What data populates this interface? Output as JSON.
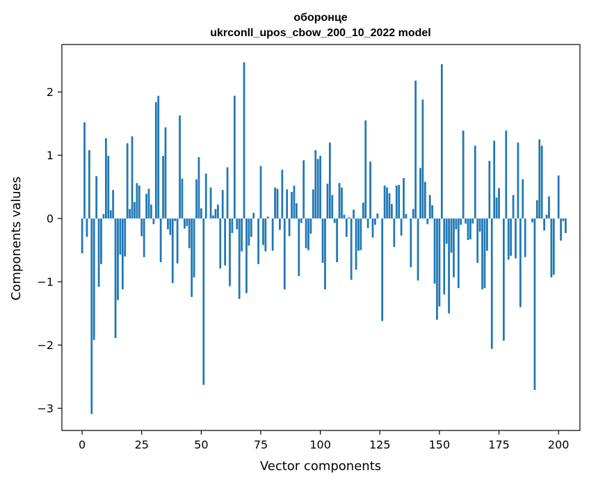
{
  "chart_data": {
    "type": "bar",
    "title_line1": "оборонце",
    "title_line2": "ukrconll_upos_cbow_200_10_2022 model",
    "xlabel": "Vector components",
    "ylabel": "Components values",
    "xlim": [
      -8.5,
      209
    ],
    "ylim": [
      -3.35,
      2.75
    ],
    "xticks": [
      0,
      25,
      50,
      75,
      100,
      125,
      150,
      175,
      200
    ],
    "xtick_labels": [
      "0",
      "25",
      "50",
      "75",
      "100",
      "125",
      "150",
      "175",
      "200"
    ],
    "yticks": [
      -3,
      -2,
      -1,
      0,
      1,
      2
    ],
    "ytick_labels": [
      "−3",
      "−2",
      "−1",
      "0",
      "1",
      "2"
    ],
    "bar_color": "#1f77b4",
    "values": [
      -0.55,
      1.52,
      -0.29,
      1.08,
      -3.09,
      -1.92,
      0.67,
      -1.08,
      -0.72,
      0.07,
      1.27,
      0.99,
      0.13,
      0.45,
      -1.89,
      -1.29,
      -0.57,
      -1.12,
      -0.6,
      1.19,
      0.15,
      1.3,
      0.26,
      0.56,
      0.52,
      -0.28,
      -0.61,
      0.39,
      0.47,
      0.22,
      -0.09,
      1.84,
      1.94,
      -0.69,
      0.99,
      1.44,
      -0.17,
      -0.26,
      -1.02,
      -0.04,
      -0.71,
      1.63,
      0.63,
      -0.16,
      -0.12,
      -0.47,
      -1.24,
      -0.93,
      0.62,
      0.97,
      0.16,
      -2.63,
      0.71,
      0.0,
      0.49,
      0.05,
      0.15,
      0.22,
      -0.79,
      0.45,
      -0.74,
      0.81,
      -1.07,
      -0.23,
      1.94,
      -0.17,
      -1.27,
      -0.52,
      2.47,
      -1.18,
      -0.43,
      -0.29,
      0.09,
      0.0,
      -0.72,
      0.83,
      -0.42,
      -0.52,
      0.03,
      0.0,
      -0.51,
      0.49,
      0.47,
      -0.18,
      0.77,
      -1.12,
      0.46,
      -0.28,
      0.42,
      0.52,
      0.24,
      -0.91,
      -0.07,
      0.92,
      -0.47,
      -0.5,
      -0.24,
      0.46,
      1.08,
      0.94,
      0.99,
      -0.7,
      -1.12,
      0.55,
      1.2,
      0.37,
      -0.07,
      -0.69,
      0.56,
      0.49,
      0.06,
      -0.29,
      0.02,
      -0.97,
      0.14,
      -0.81,
      -0.51,
      -0.5,
      0.25,
      1.55,
      -0.15,
      0.9,
      -0.3,
      -0.1,
      0.08,
      0.0,
      -1.62,
      0.52,
      0.49,
      0.4,
      0.23,
      -0.45,
      0.52,
      0.53,
      -0.27,
      0.64,
      0.07,
      0.0,
      -0.77,
      0.15,
      2.18,
      -0.98,
      0.8,
      1.88,
      0.58,
      -0.09,
      0.37,
      0.21,
      -1.03,
      -1.6,
      -1.39,
      2.44,
      -1.2,
      -0.4,
      -1.5,
      -0.54,
      -0.93,
      -0.17,
      -1.1,
      -0.1,
      1.39,
      -0.08,
      -0.34,
      -0.33,
      -0.08,
      1.15,
      -0.7,
      -0.21,
      -1.12,
      -1.1,
      -0.51,
      0.91,
      -2.06,
      1.23,
      0.33,
      0.48,
      0.0,
      -1.93,
      1.39,
      -0.65,
      -0.59,
      0.37,
      -0.63,
      1.2,
      -1.4,
      0.62,
      -0.61,
      0.0,
      0.0,
      -0.06,
      -2.71,
      0.29,
      1.25,
      1.15,
      -0.19,
      0.06,
      0.35,
      -0.93,
      -0.89,
      0.0,
      0.68,
      -0.35,
      -0.04,
      -0.23
    ]
  }
}
